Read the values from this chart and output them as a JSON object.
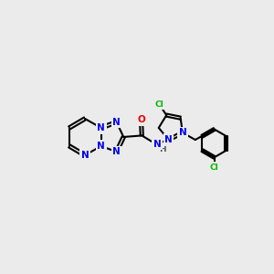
{
  "background_color": "#ebebeb",
  "bond_color": "#000000",
  "bond_lw": 1.5,
  "atom_colors": {
    "N": "#0000ee",
    "O": "#ee0000",
    "Cl": "#00bb00",
    "C": "#000000",
    "H": "#555555"
  },
  "font_size": 7.5,
  "font_size_small": 6.5
}
